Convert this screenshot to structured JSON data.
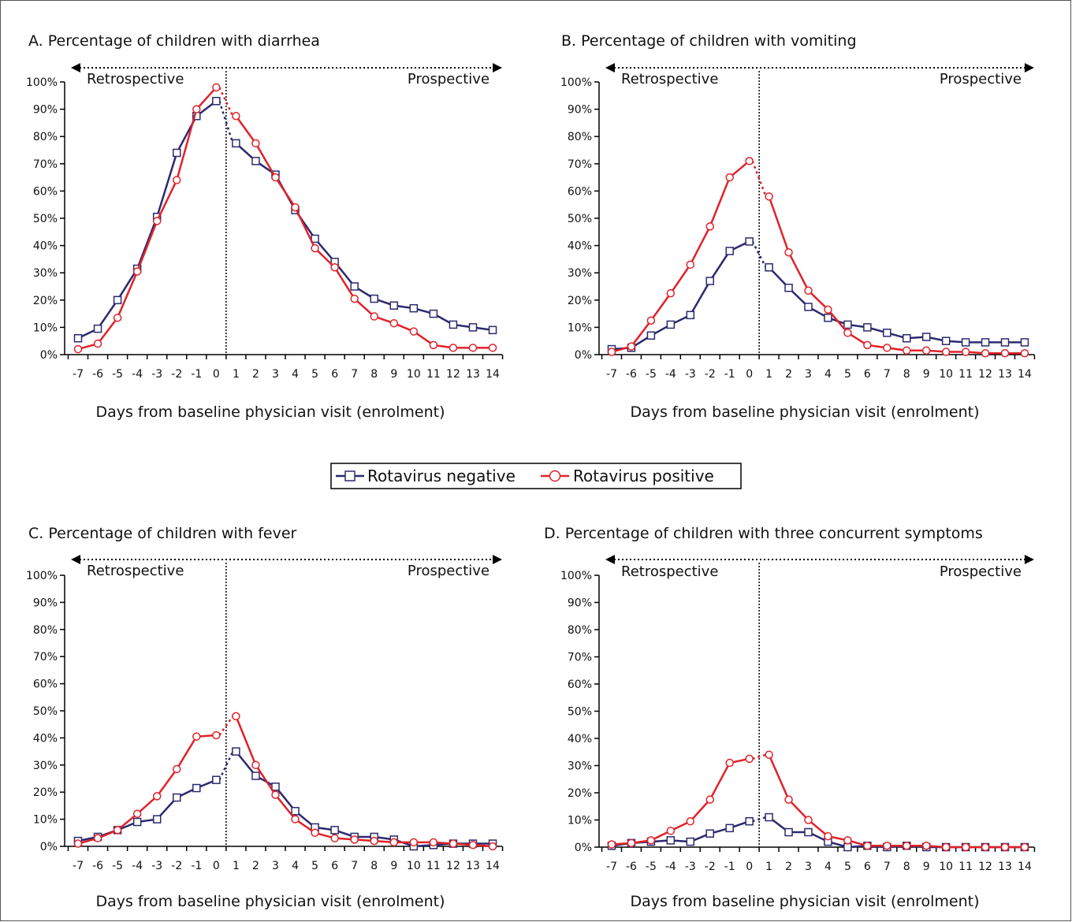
{
  "colors": {
    "negative": "#2b2a6e",
    "positive": "#e0222a",
    "axis": "#000000"
  },
  "legend": {
    "negative": "Rotavirus negative",
    "positive": "Rotavirus positive"
  },
  "chart_data": [
    {
      "type": "line",
      "title": "A. Percentage of children with diarrhea",
      "xlabel": "Days from baseline physician visit (enrolment)",
      "ylabel": "",
      "left_label": "Retrospective",
      "right_label": "Prospective",
      "ylim": [
        0,
        100
      ],
      "yticks": [
        "0%",
        "10%",
        "20%",
        "30%",
        "40%",
        "50%",
        "60%",
        "70%",
        "80%",
        "90%",
        "100%"
      ],
      "x": [
        -7,
        -6,
        -5,
        -4,
        -3,
        -2,
        -1,
        0,
        1,
        2,
        3,
        4,
        5,
        6,
        7,
        8,
        9,
        10,
        11,
        12,
        13,
        14
      ],
      "series": [
        {
          "name": "Rotavirus negative",
          "values": [
            6,
            9.5,
            20,
            31.5,
            50.5,
            74,
            87.5,
            93,
            77.5,
            71,
            66,
            53,
            42.5,
            34,
            25,
            20.5,
            18,
            17,
            15,
            11,
            10,
            9
          ]
        },
        {
          "name": "Rotavirus positive",
          "values": [
            2,
            4,
            13.5,
            30.5,
            49,
            64,
            90,
            98,
            87.5,
            77.5,
            65,
            54,
            39,
            32,
            20.5,
            14,
            11.5,
            8.5,
            3.5,
            2.5,
            2.5,
            2.5
          ]
        }
      ]
    },
    {
      "type": "line",
      "title": "B. Percentage of children with vomiting",
      "xlabel": "Days from baseline physician visit (enrolment)",
      "ylabel": "",
      "left_label": "Retrospective",
      "right_label": "Prospective",
      "ylim": [
        0,
        100
      ],
      "yticks": [
        "0%",
        "10%",
        "20%",
        "30%",
        "40%",
        "50%",
        "60%",
        "70%",
        "80%",
        "90%",
        "100%"
      ],
      "x": [
        -7,
        -6,
        -5,
        -4,
        -3,
        -2,
        -1,
        0,
        1,
        2,
        3,
        4,
        5,
        6,
        7,
        8,
        9,
        10,
        11,
        12,
        13,
        14
      ],
      "series": [
        {
          "name": "Rotavirus negative",
          "values": [
            2,
            2.5,
            7,
            11,
            14.5,
            27,
            38,
            41.5,
            32,
            24.5,
            17.5,
            13.5,
            11,
            10,
            8,
            6,
            6.5,
            5,
            4.5,
            4.5,
            4.5,
            4.5
          ]
        },
        {
          "name": "Rotavirus positive",
          "values": [
            1,
            3,
            12.5,
            22.5,
            33,
            47,
            65,
            71,
            58,
            37.5,
            23.5,
            16.5,
            8,
            3.5,
            2.5,
            1.5,
            1.5,
            1,
            1,
            0.5,
            0.5,
            0.5
          ]
        }
      ]
    },
    {
      "type": "line",
      "title": "C. Percentage of children with fever",
      "xlabel": "Days from baseline physician visit (enrolment)",
      "ylabel": "",
      "left_label": "Retrospective",
      "right_label": "Prospective",
      "ylim": [
        0,
        100
      ],
      "yticks": [
        "0%",
        "10%",
        "20%",
        "30%",
        "40%",
        "50%",
        "60%",
        "70%",
        "80%",
        "90%",
        "100%"
      ],
      "x": [
        -7,
        -6,
        -5,
        -4,
        -3,
        -2,
        -1,
        0,
        1,
        2,
        3,
        4,
        5,
        6,
        7,
        8,
        9,
        10,
        11,
        12,
        13,
        14
      ],
      "series": [
        {
          "name": "Rotavirus negative",
          "values": [
            2,
            3.5,
            6,
            9,
            10,
            18,
            21.5,
            24.5,
            35,
            26,
            22,
            13,
            7,
            6,
            3.5,
            3.5,
            2.5,
            0,
            0.5,
            1,
            1,
            1
          ]
        },
        {
          "name": "Rotavirus positive",
          "values": [
            1,
            3,
            6,
            12,
            18.5,
            28.5,
            40.5,
            41,
            48,
            30,
            19,
            10,
            5,
            3,
            2.5,
            2,
            1.5,
            1.5,
            1.5,
            1,
            0.5,
            0
          ]
        }
      ]
    },
    {
      "type": "line",
      "title": "D. Percentage of children with three concurrent symptoms",
      "xlabel": "Days from baseline physician visit (enrolment)",
      "ylabel": "",
      "left_label": "Retrospective",
      "right_label": "Prospective",
      "ylim": [
        0,
        100
      ],
      "yticks": [
        "0%",
        "10%",
        "20%",
        "30%",
        "40%",
        "50%",
        "60%",
        "70%",
        "80%",
        "90%",
        "100%"
      ],
      "x": [
        -7,
        -6,
        -5,
        -4,
        -3,
        -2,
        -1,
        0,
        1,
        2,
        3,
        4,
        5,
        6,
        7,
        8,
        9,
        10,
        11,
        12,
        13,
        14
      ],
      "series": [
        {
          "name": "Rotavirus negative",
          "values": [
            0.5,
            1.5,
            2,
            2.5,
            2,
            5,
            7,
            9.5,
            11,
            5.5,
            5.5,
            2,
            0,
            0.5,
            0,
            0.5,
            0,
            0,
            0,
            0,
            0,
            0
          ]
        },
        {
          "name": "Rotavirus positive",
          "values": [
            1,
            1.5,
            2.5,
            6,
            9.5,
            17.5,
            31,
            32.5,
            34,
            17.5,
            10,
            4,
            2.5,
            0.5,
            0.5,
            0.5,
            0.5,
            0,
            0,
            0,
            0,
            0
          ]
        }
      ]
    }
  ]
}
